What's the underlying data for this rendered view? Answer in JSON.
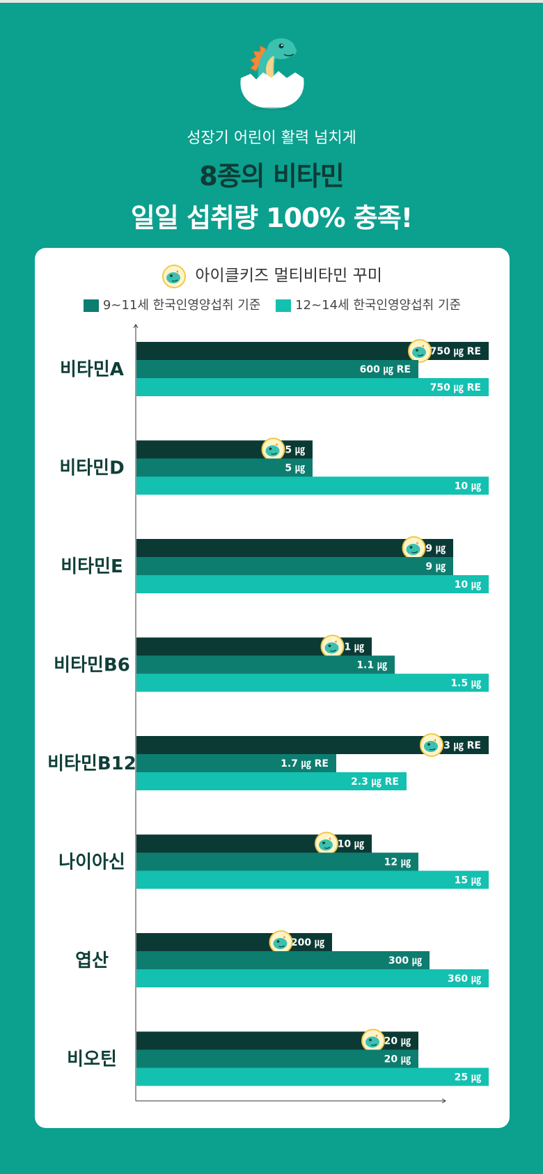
{
  "header": {
    "subtitle": "성장기 어린이 활력 넘치게",
    "title_line1": "8종의 비타민",
    "title_line2": "일일 섭취량 100% 충족!"
  },
  "colors": {
    "background": "#0ca08e",
    "series_product": "#0b3a35",
    "series_9_11": "#0d7d70",
    "series_12_14": "#14c0b0"
  },
  "chart_data": {
    "type": "bar",
    "orientation": "horizontal",
    "categories": [
      "비타민A",
      "비타민D",
      "비타민E",
      "비타민B6",
      "비타민B12",
      "나이아신",
      "엽산",
      "비오틴"
    ],
    "series": [
      {
        "name": "아이클키즈 멀티비타민 꾸미",
        "color": "#0b3a35",
        "values": [
          750,
          5,
          9,
          1,
          3,
          10,
          200,
          20
        ],
        "labels": [
          "750 ㎍ RE",
          "5 ㎍",
          "9 ㎍",
          "1 ㎍",
          "3 ㎍ RE",
          "10 ㎍",
          "200 ㎍",
          "20 ㎍"
        ]
      },
      {
        "name": "9~11세 한국인영양섭취 기준",
        "color": "#0d7d70",
        "values": [
          600,
          5,
          9,
          1.1,
          1.7,
          12,
          300,
          20
        ],
        "labels": [
          "600 ㎍ RE",
          "5 ㎍",
          "9 ㎍",
          "1.1 ㎍",
          "1.7 ㎍ RE",
          "12 ㎍",
          "300 ㎍",
          "20 ㎍"
        ]
      },
      {
        "name": "12~14세 한국인영양섭취 기준",
        "color": "#14c0b0",
        "values": [
          750,
          10,
          10,
          1.5,
          2.3,
          15,
          360,
          25
        ],
        "labels": [
          "750 ㎍ RE",
          "10 ㎍",
          "10 ㎍",
          "1.5 ㎍",
          "2.3 ㎍ RE",
          "15 ㎍",
          "360 ㎍",
          "25 ㎍"
        ]
      }
    ],
    "relative_levels": [
      [
        1.0,
        0.8,
        1.0
      ],
      [
        0.5,
        0.5,
        1.0
      ],
      [
        0.9,
        0.9,
        1.0
      ],
      [
        0.667,
        0.733,
        1.0
      ],
      [
        1.0,
        0.567,
        0.767
      ],
      [
        0.667,
        0.8,
        1.0
      ],
      [
        0.556,
        0.833,
        1.0
      ],
      [
        0.8,
        0.8,
        1.0
      ]
    ],
    "legend": [
      "9~11세 한국인영양섭취 기준",
      "12~14세 한국인영양섭취 기준"
    ],
    "product_label": "아이클키즈 멀티비타민 꾸미",
    "marker_icon": "dinosaur-badge-icon"
  }
}
